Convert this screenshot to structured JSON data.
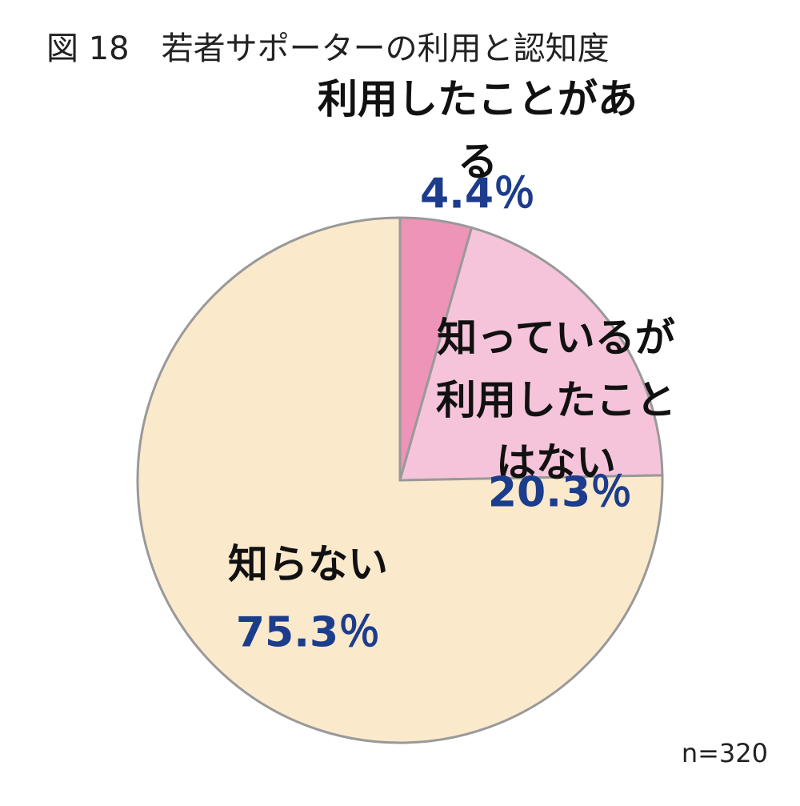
{
  "chart_data": {
    "type": "pie",
    "title": "図 18　若者サポーターの利用と認知度",
    "categories": [
      "利用したことがある",
      "知っているが\n利用したことはない",
      "知らない"
    ],
    "values": [
      4.4,
      20.3,
      75.3
    ],
    "value_labels": [
      "4.4％",
      "20.3％",
      "75.3％"
    ],
    "colors": [
      "#ed94b8",
      "#f6c4da",
      "#fbe9cc"
    ],
    "note": "n=320"
  }
}
